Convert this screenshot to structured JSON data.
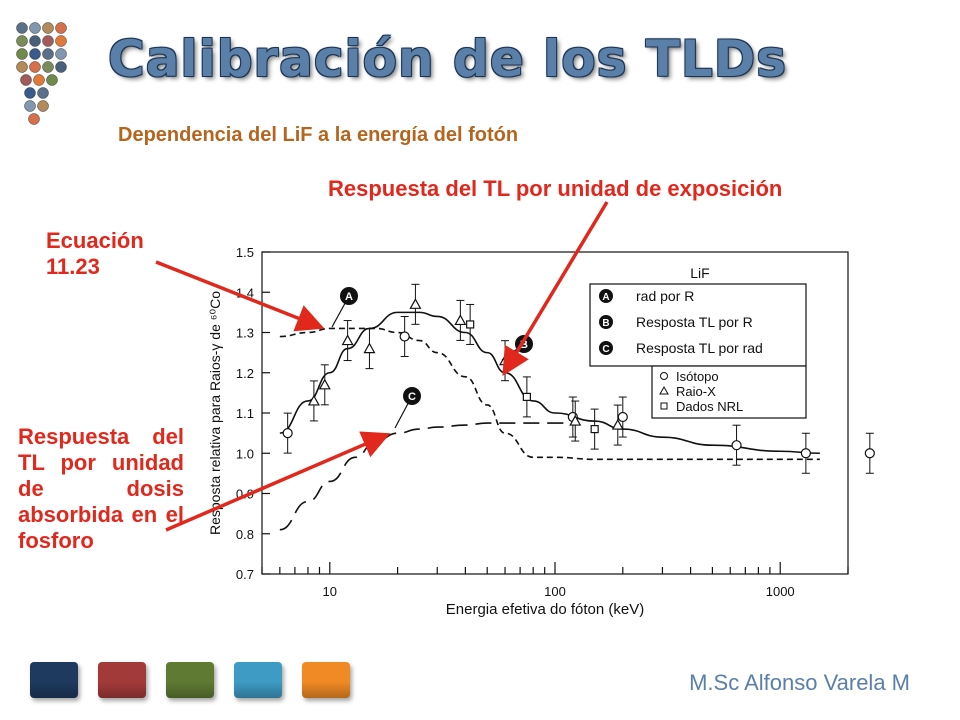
{
  "slide": {
    "title": "Calibración de los TLDs",
    "subtitle": "Dependencia del LiF a la energía del fotón",
    "annotation_exposure": "Respuesta del TL por unidad de exposición",
    "annotation_equation": "Ecuación 11.23",
    "annotation_dose": "Respuesta del TL por unidad de dosis absorbida en el fosforo",
    "author": "M.Sc Alfonso Varela M"
  },
  "colors": {
    "title": "#5a7fa8",
    "subtitle": "#b5651d",
    "annotation": "#e0281d",
    "author": "#5b7fa9",
    "nav_buttons": [
      "#1e3a5f",
      "#a33a3a",
      "#5f7a33",
      "#3d9bc4",
      "#f08a24"
    ]
  },
  "logo_dot_colors": [
    "#5a6f8a",
    "#8296b0",
    "#b38a5a",
    "#d6704a",
    "#7a8c5a",
    "#4a5f7a",
    "#a35a5a",
    "#e07a3a",
    "#6f8a4a",
    "#3a5a8a"
  ],
  "nav_icons": [
    "nav-button-dark-blue",
    "nav-button-red",
    "nav-button-green",
    "nav-button-light-blue",
    "nav-button-orange"
  ],
  "chart_data": {
    "type": "line",
    "title": "LiF",
    "xlabel": "Energia efetiva do fóton (keV)",
    "ylabel": "Resposta relativa para Raios-γ de ⁶⁰Co",
    "x_scale": "log",
    "xlim": [
      5,
      2000
    ],
    "ylim": [
      0.7,
      1.5
    ],
    "x_ticks": [
      10,
      100,
      1000
    ],
    "x_tick_labels": [
      "10",
      "100",
      "1000"
    ],
    "y_ticks": [
      0.7,
      0.8,
      0.9,
      1.0,
      1.1,
      1.2,
      1.3,
      1.4,
      1.5
    ],
    "y_tick_labels": [
      "0.7",
      "0.8",
      "0.9",
      "1.0",
      "1.1",
      "1.2",
      "1.3",
      "1.4",
      "1.5"
    ],
    "legend": {
      "position": "top-right",
      "curves": [
        {
          "marker": "A",
          "label": "rad por R"
        },
        {
          "marker": "B",
          "label": "Resposta TL por R"
        },
        {
          "marker": "C",
          "label": "Resposta TL por rad"
        }
      ],
      "points": [
        {
          "symbol": "circle",
          "label": "Isótopo"
        },
        {
          "symbol": "triangle",
          "label": "Raio-X"
        },
        {
          "symbol": "square",
          "label": "Dados NRL"
        }
      ]
    },
    "series": [
      {
        "marker": "A",
        "style": "short-dash",
        "x": [
          6,
          8,
          10,
          13,
          16,
          20,
          25,
          30,
          40,
          50,
          60,
          80,
          100,
          150,
          200,
          300,
          500,
          1000,
          1500
        ],
        "y": [
          1.29,
          1.3,
          1.31,
          1.31,
          1.31,
          1.3,
          1.28,
          1.25,
          1.19,
          1.12,
          1.05,
          0.99,
          0.99,
          0.985,
          0.985,
          0.985,
          0.985,
          0.985,
          0.985
        ]
      },
      {
        "marker": "B",
        "style": "solid",
        "x": [
          6,
          8,
          10,
          12,
          15,
          20,
          25,
          30,
          40,
          50,
          60,
          80,
          100,
          150,
          200,
          300,
          500,
          1000,
          1500
        ],
        "y": [
          1.05,
          1.13,
          1.2,
          1.26,
          1.31,
          1.35,
          1.35,
          1.34,
          1.3,
          1.25,
          1.2,
          1.13,
          1.1,
          1.08,
          1.06,
          1.04,
          1.02,
          1.005,
          1.0
        ]
      },
      {
        "marker": "C",
        "style": "long-dash",
        "x": [
          6,
          8,
          10,
          13,
          16,
          20,
          25,
          30,
          40,
          50,
          60,
          80,
          100,
          120
        ],
        "y": [
          0.81,
          0.88,
          0.93,
          0.99,
          1.03,
          1.05,
          1.06,
          1.065,
          1.07,
          1.075,
          1.075,
          1.075,
          1.075,
          1.075
        ]
      }
    ],
    "points": [
      {
        "symbol": "circle",
        "x": [
          6.5,
          21.5,
          120,
          200,
          640,
          1300,
          2500
        ],
        "y": [
          1.05,
          1.29,
          1.09,
          1.09,
          1.02,
          1.0,
          1.0
        ]
      },
      {
        "symbol": "triangle",
        "x": [
          8.5,
          9.5,
          12,
          15,
          24,
          38,
          60,
          123,
          190
        ],
        "y": [
          1.13,
          1.17,
          1.28,
          1.26,
          1.37,
          1.33,
          1.23,
          1.08,
          1.07
        ]
      },
      {
        "symbol": "square",
        "x": [
          42,
          75,
          150
        ],
        "y": [
          1.32,
          1.14,
          1.06
        ]
      }
    ]
  }
}
